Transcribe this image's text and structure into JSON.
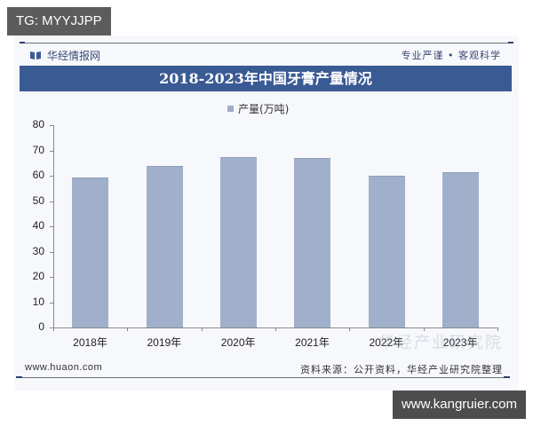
{
  "overlay": {
    "tg_label": "TG: MYYJJPP",
    "site_label": "www.kangruier.com"
  },
  "header": {
    "brand": "华经情报网",
    "slogan": "专业严谨 • 客观科学",
    "title": "2018-2023年中国牙膏产量情况"
  },
  "legend": {
    "label": "产量(万吨)",
    "color": "#a0afca"
  },
  "footer": {
    "url": "www.huaon.com",
    "source": "资料来源：公开资料，华经产业研究院整理",
    "watermark": "华经产业研究院"
  },
  "colors": {
    "title_bar": "#3a5a94",
    "bar": "#a0afca",
    "brand_text": "#3a4a73"
  },
  "chart_data": {
    "type": "bar",
    "title": "2018-2023年中国牙膏产量情况",
    "xlabel": "",
    "ylabel": "产量(万吨)",
    "categories": [
      "2018年",
      "2019年",
      "2020年",
      "2021年",
      "2022年",
      "2023年"
    ],
    "series": [
      {
        "name": "产量(万吨)",
        "values": [
          59.3,
          63.9,
          67.4,
          67.0,
          60.0,
          61.4
        ]
      }
    ],
    "ylim": [
      0,
      80
    ],
    "yticks": [
      0,
      10,
      20,
      30,
      40,
      50,
      60,
      70,
      80
    ],
    "grid": false,
    "legend_position": "top"
  }
}
